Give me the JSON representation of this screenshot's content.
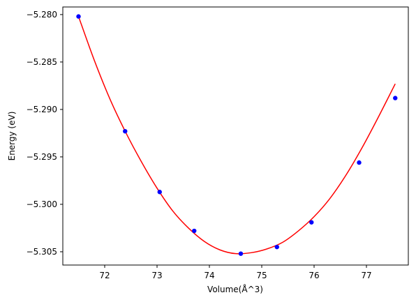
{
  "chart_data": {
    "type": "scatter",
    "title": "",
    "xlabel": "Volume(Å^3)",
    "ylabel": "Energy (eV)",
    "xlim": [
      71.2,
      77.8
    ],
    "ylim": [
      -5.3064,
      -5.2792
    ],
    "xticks": [
      72,
      73,
      74,
      75,
      76,
      77
    ],
    "xtick_labels": [
      "72",
      "73",
      "74",
      "75",
      "76",
      "77"
    ],
    "yticks": [
      -5.305,
      -5.3,
      -5.295,
      -5.29,
      -5.285,
      -5.28
    ],
    "ytick_labels": [
      "−5.305",
      "−5.300",
      "−5.295",
      "−5.290",
      "−5.285",
      "−5.280"
    ],
    "grid": false,
    "series": [
      {
        "kind": "points",
        "color": "#0000ff",
        "x": [
          71.5,
          72.39,
          73.05,
          73.71,
          74.6,
          75.29,
          75.95,
          76.86,
          77.55
        ],
        "y": [
          -5.2802,
          -5.2923,
          -5.2987,
          -5.3028,
          -5.3052,
          -5.3045,
          -5.3019,
          -5.2956,
          -5.2888
        ]
      },
      {
        "kind": "fit-curve",
        "color": "#ff0000",
        "x": [
          71.5,
          71.8,
          72.1,
          72.4,
          72.7,
          73.0,
          73.3,
          73.6,
          73.9,
          74.2,
          74.5,
          74.8,
          75.1,
          75.4,
          75.7,
          76.0,
          76.3,
          76.6,
          76.9,
          77.2,
          77.55
        ],
        "y": [
          -5.2802,
          -5.2848,
          -5.2889,
          -5.2924,
          -5.2955,
          -5.2983,
          -5.3007,
          -5.3025,
          -5.3039,
          -5.3048,
          -5.3052,
          -5.3051,
          -5.3047,
          -5.304,
          -5.3028,
          -5.3013,
          -5.2994,
          -5.297,
          -5.2942,
          -5.2911,
          -5.2873
        ]
      }
    ]
  }
}
